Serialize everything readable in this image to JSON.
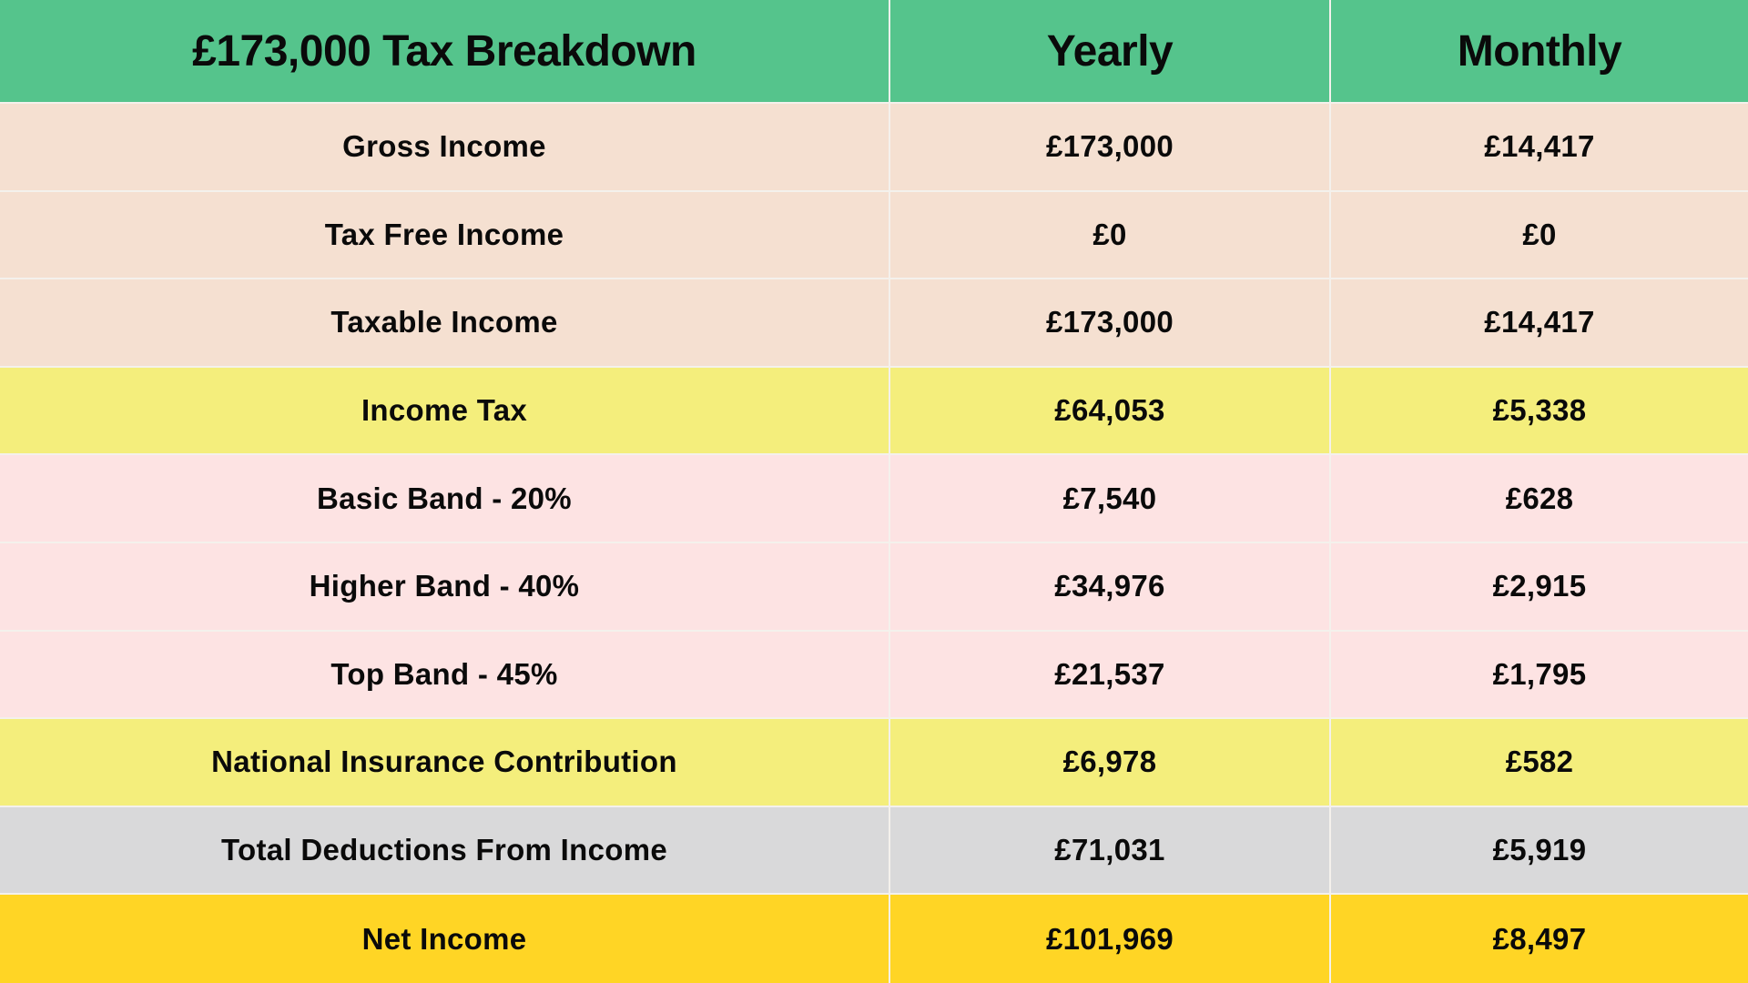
{
  "table": {
    "headers": [
      "£173,000 Tax Breakdown",
      "Yearly",
      "Monthly"
    ],
    "rows": [
      {
        "label": "Gross Income",
        "yearly": "£173,000",
        "monthly": "£14,417",
        "style": "income",
        "color": "#f5e0d1"
      },
      {
        "label": "Tax Free Income",
        "yearly": "£0",
        "monthly": "£0",
        "style": "income",
        "color": "#f5e0d1"
      },
      {
        "label": "Taxable Income",
        "yearly": "£173,000",
        "monthly": "£14,417",
        "style": "income",
        "color": "#f5e0d1"
      },
      {
        "label": "Income Tax",
        "yearly": "£64,053",
        "monthly": "£5,338",
        "style": "tax",
        "color": "#f4ee7c"
      },
      {
        "label": "Basic Band - 20%",
        "yearly": "£7,540",
        "monthly": "£628",
        "style": "band",
        "color": "#fde3e3"
      },
      {
        "label": "Higher Band - 40%",
        "yearly": "£34,976",
        "monthly": "£2,915",
        "style": "band",
        "color": "#fde3e3"
      },
      {
        "label": "Top Band - 45%",
        "yearly": "£21,537",
        "monthly": "£1,795",
        "style": "band",
        "color": "#fde3e3"
      },
      {
        "label": "National Insurance Contribution",
        "yearly": "£6,978",
        "monthly": "£582",
        "style": "tax",
        "color": "#f4ee7c"
      },
      {
        "label": "Total Deductions From Income",
        "yearly": "£71,031",
        "monthly": "£5,919",
        "style": "total",
        "color": "#d9d9da"
      },
      {
        "label": "Net Income",
        "yearly": "£101,969",
        "monthly": "£8,497",
        "style": "net",
        "color": "#ffd525"
      }
    ]
  },
  "colors": {
    "header": "#55c48c",
    "divider": "#f4f1ec"
  }
}
